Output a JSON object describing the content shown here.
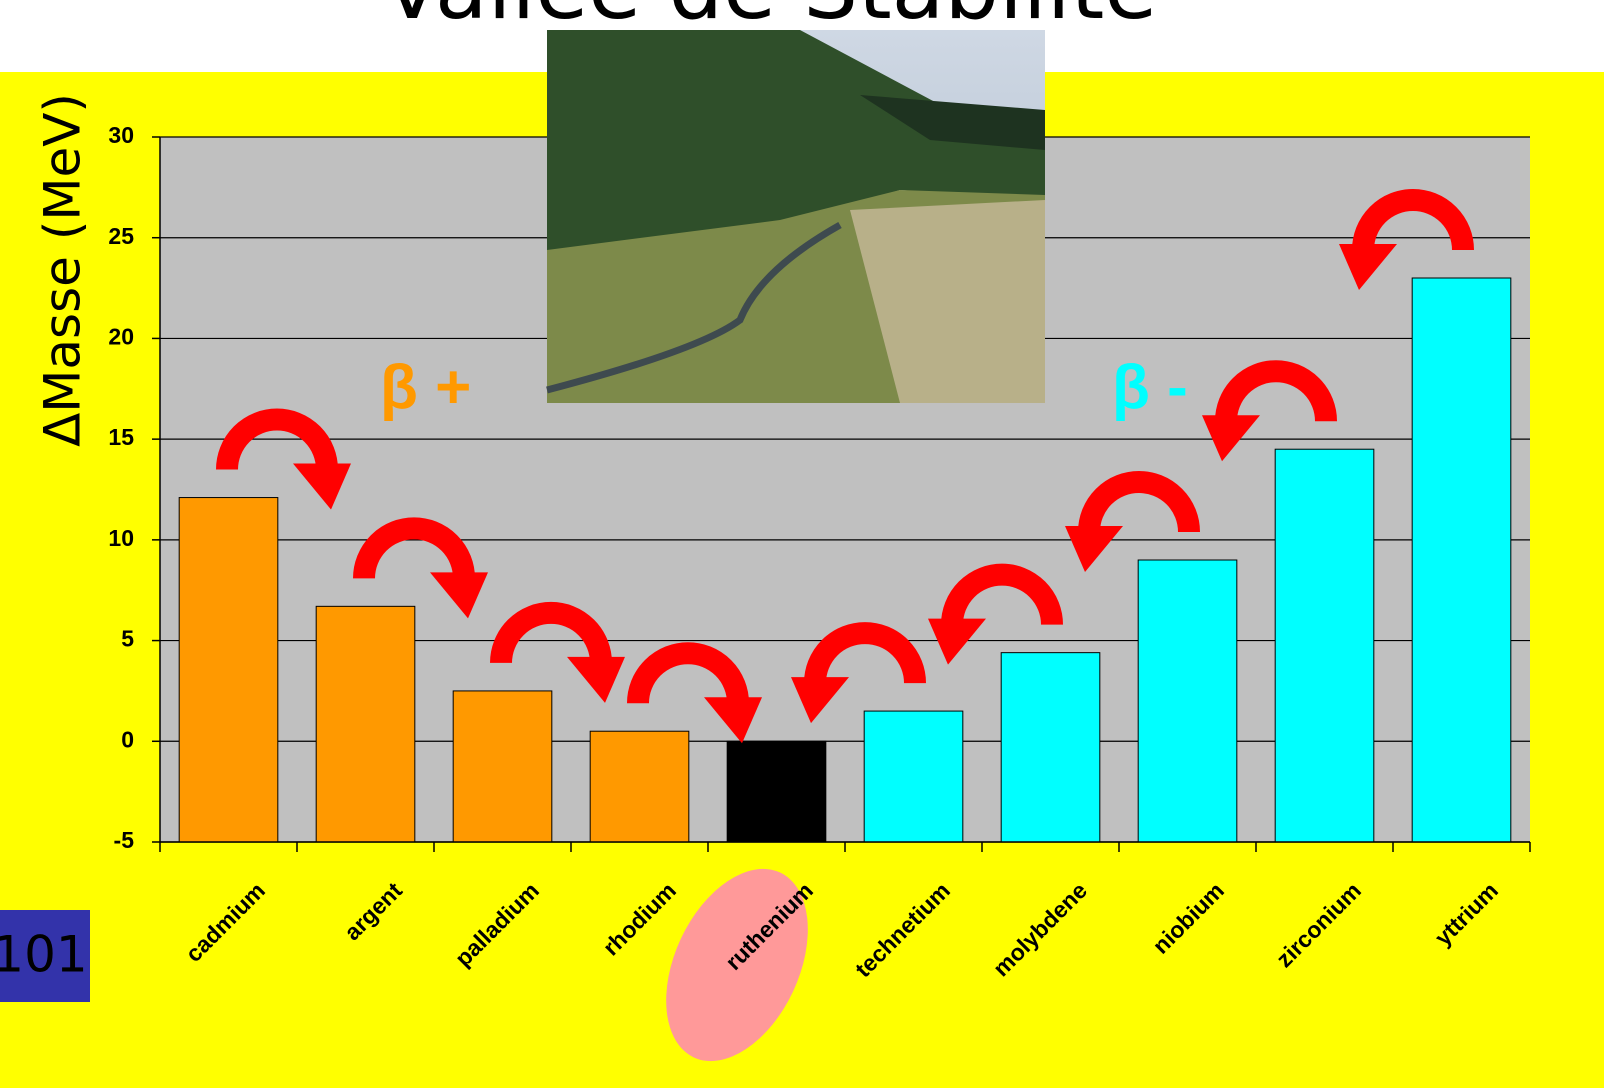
{
  "chart_data": {
    "type": "bar",
    "title": "Vallée de Stabilité",
    "y_label": "ΔMasse (MeV)",
    "categories": [
      "cadmium",
      "argent",
      "palladium",
      "rhodium",
      "ruthenium",
      "technetium",
      "molybdene",
      "niobium",
      "zirconium",
      "yttrium"
    ],
    "values": [
      12.1,
      6.7,
      2.5,
      0.5,
      0,
      1.5,
      4.4,
      9,
      14.5,
      23
    ],
    "colors": [
      "#ff9900",
      "#ff9900",
      "#ff9900",
      "#ff9900",
      "#000000",
      "#00ffff",
      "#00ffff",
      "#00ffff",
      "#00ffff",
      "#00ffff"
    ],
    "ylim": [
      -5,
      30
    ],
    "yticks": [
      -5,
      0,
      5,
      10,
      15,
      20,
      25,
      30
    ],
    "grid": true,
    "annotations": [
      {
        "text": "β +",
        "color": "#ff9900"
      },
      {
        "text": "β -",
        "color": "#00ffff"
      }
    ]
  },
  "slide_number": "101"
}
